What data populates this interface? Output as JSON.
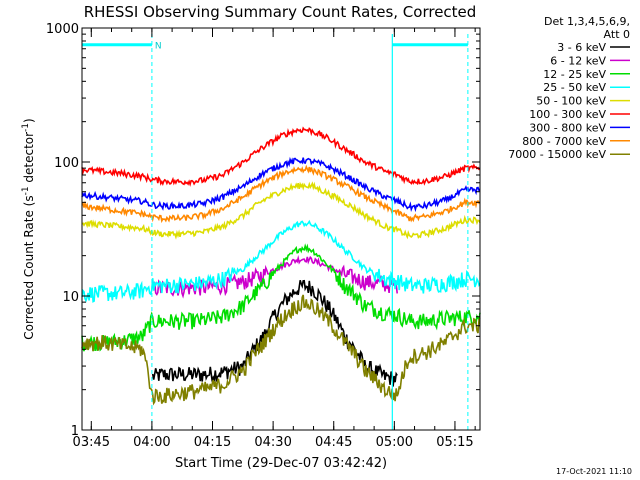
{
  "chart_data": {
    "type": "line",
    "title": "RHESSI Observing Summary Count Rates, Corrected",
    "xlabel": "Start Time (29-Dec-07 03:42:42)",
    "ylabel_prefix": "Corrected Count Rate (s",
    "ylabel_sup1": "-1",
    "ylabel_mid": " detector",
    "ylabel_sup2": "-1",
    "ylabel_suffix": ")",
    "y_scale": "log",
    "ylim": [
      1,
      1000
    ],
    "y_ticks": [
      {
        "value": 1,
        "label": "1"
      },
      {
        "value": 10,
        "label": "10"
      },
      {
        "value": 100,
        "label": "100"
      },
      {
        "value": 1000,
        "label": "1000"
      }
    ],
    "x_unit": "minutes after 03:42:42",
    "xlim": [
      0,
      98.5
    ],
    "x_ticks": [
      {
        "t": 2.3,
        "label": "03:45"
      },
      {
        "t": 17.3,
        "label": "04:00"
      },
      {
        "t": 32.3,
        "label": "04:15"
      },
      {
        "t": 47.3,
        "label": "04:30"
      },
      {
        "t": 62.3,
        "label": "04:45"
      },
      {
        "t": 77.3,
        "label": "05:00"
      },
      {
        "t": 92.3,
        "label": "05:15"
      }
    ],
    "legend_header": [
      "Det 1,3,4,5,6,9,",
      "Att 0"
    ],
    "legend_position": "right",
    "night_marker_label": "N",
    "cyan_guides": {
      "dashed_times": [
        17.3,
        95.5
      ],
      "solid_time": 76.8,
      "top_bar_segments": [
        [
          0,
          17.3
        ],
        [
          76.8,
          95.5
        ]
      ],
      "level": 750
    },
    "series": [
      {
        "name": "3 - 6 keV",
        "color": "#000000",
        "x": [
          0,
          5,
          10,
          15,
          17.3,
          20,
          25,
          30,
          35,
          40,
          45,
          50,
          53,
          55,
          57,
          60,
          65,
          70,
          75,
          78,
          81,
          85,
          90,
          95
        ],
        "y": [
          null,
          null,
          null,
          null,
          2.5,
          2.6,
          2.6,
          2.6,
          2.7,
          3.0,
          5.0,
          9.0,
          11.2,
          12.0,
          11.5,
          9.0,
          5.0,
          3.0,
          2.5,
          2.4,
          null,
          null,
          null,
          null
        ]
      },
      {
        "name": "6 - 12 keV",
        "color": "#cc00cc",
        "x": [
          0,
          5,
          10,
          15,
          17.3,
          20,
          25,
          30,
          35,
          40,
          45,
          50,
          53,
          55,
          57,
          60,
          65,
          70,
          75,
          78,
          81,
          85,
          90,
          95
        ],
        "y": [
          null,
          null,
          null,
          null,
          11.5,
          11.5,
          11.5,
          11.6,
          12.0,
          12.8,
          14.5,
          17.0,
          18.5,
          19.0,
          18.5,
          17.0,
          14.5,
          12.8,
          12.2,
          12.0,
          null,
          null,
          null,
          null
        ]
      },
      {
        "name": "12 - 25 keV",
        "color": "#00dd00",
        "x": [
          0,
          5,
          10,
          15,
          17.3,
          20,
          25,
          30,
          35,
          40,
          45,
          50,
          53,
          55,
          57,
          60,
          65,
          70,
          75,
          78,
          81,
          85,
          90,
          95
        ],
        "y": [
          4.5,
          4.5,
          4.6,
          5.0,
          6.5,
          6.5,
          6.5,
          6.6,
          7.0,
          8.5,
          12.0,
          18.0,
          22.0,
          23.0,
          22.0,
          18.0,
          12.0,
          8.5,
          7.5,
          7.2,
          6.5,
          6.5,
          6.8,
          7.0
        ]
      },
      {
        "name": "25 - 50 keV",
        "color": "#00ffff",
        "x": [
          0,
          5,
          10,
          15,
          17.3,
          20,
          25,
          30,
          35,
          40,
          45,
          50,
          53,
          55,
          57,
          60,
          65,
          70,
          75,
          78,
          81,
          85,
          90,
          95
        ],
        "y": [
          10.5,
          10.5,
          10.5,
          11.0,
          12.0,
          12.0,
          12.2,
          12.5,
          13.5,
          16.0,
          22.0,
          30.0,
          34.0,
          35.0,
          34.0,
          30.0,
          22.0,
          16.0,
          13.5,
          13.0,
          12.0,
          12.0,
          12.5,
          13.5
        ]
      },
      {
        "name": "50 - 100 keV",
        "color": "#dddd00",
        "x": [
          0,
          5,
          10,
          15,
          17.3,
          20,
          25,
          30,
          35,
          40,
          45,
          50,
          53,
          55,
          57,
          60,
          65,
          70,
          75,
          78,
          81,
          85,
          90,
          95
        ],
        "y": [
          35,
          34,
          33,
          32,
          30,
          29,
          29,
          30,
          33,
          40,
          52,
          62,
          66,
          67,
          66,
          60,
          50,
          40,
          33,
          31,
          28,
          29,
          32,
          37
        ]
      },
      {
        "name": "100 - 300 keV",
        "color": "#ff0000",
        "x": [
          0,
          5,
          10,
          15,
          17.3,
          20,
          25,
          30,
          35,
          40,
          45,
          50,
          53,
          55,
          57,
          60,
          65,
          70,
          75,
          78,
          81,
          85,
          90,
          95
        ],
        "y": [
          88,
          85,
          82,
          78,
          74,
          72,
          71,
          73,
          80,
          100,
          130,
          160,
          172,
          175,
          170,
          155,
          125,
          100,
          85,
          80,
          72,
          72,
          78,
          90
        ]
      },
      {
        "name": "300 - 800 keV",
        "color": "#0000ff",
        "x": [
          0,
          5,
          10,
          15,
          17.3,
          20,
          25,
          30,
          35,
          40,
          45,
          50,
          53,
          55,
          57,
          60,
          65,
          70,
          75,
          78,
          81,
          85,
          90,
          95
        ],
        "y": [
          57,
          55,
          53,
          51,
          48,
          47,
          47,
          49,
          55,
          66,
          83,
          97,
          102,
          103,
          101,
          95,
          80,
          65,
          55,
          51,
          46,
          47,
          52,
          62
        ]
      },
      {
        "name": "800 - 7000 keV",
        "color": "#ff8800",
        "x": [
          0,
          5,
          10,
          15,
          17.3,
          20,
          25,
          30,
          35,
          40,
          45,
          50,
          53,
          55,
          57,
          60,
          65,
          70,
          75,
          78,
          81,
          85,
          90,
          95
        ],
        "y": [
          47,
          45,
          43,
          41,
          39,
          38,
          38,
          40,
          45,
          55,
          70,
          83,
          88,
          89,
          87,
          80,
          67,
          55,
          46,
          42,
          38,
          39,
          43,
          50
        ]
      },
      {
        "name": "7000 - 15000 keV",
        "color": "#808000",
        "x": [
          0,
          5,
          10,
          15,
          17.3,
          20,
          25,
          30,
          35,
          40,
          45,
          50,
          53,
          55,
          57,
          60,
          65,
          70,
          75,
          78,
          81,
          85,
          90,
          95
        ],
        "y": [
          4.5,
          4.5,
          4.3,
          4.0,
          1.8,
          1.8,
          1.9,
          2.0,
          2.2,
          2.8,
          4.5,
          7.0,
          8.5,
          9.0,
          8.5,
          7.0,
          4.5,
          2.8,
          2.0,
          1.8,
          3.5,
          3.8,
          4.5,
          6.0
        ]
      }
    ]
  },
  "footer": {
    "timestamp": "17-Oct-2021 11:10"
  }
}
